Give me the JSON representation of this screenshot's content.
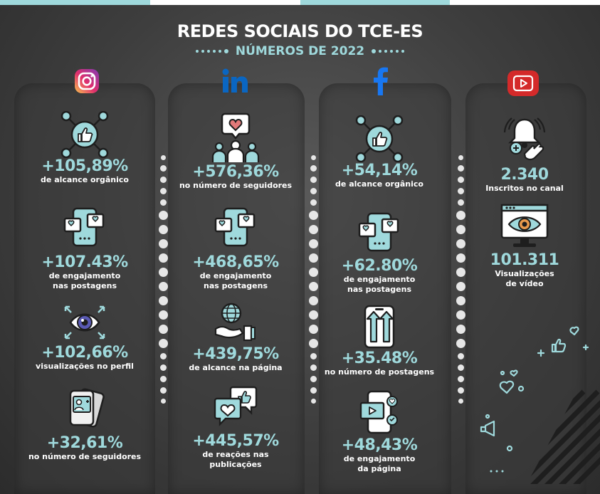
{
  "header": {
    "title": "REDES SOCIAIS DO TCE-ES",
    "subtitle": "NÚMEROS DE 2022"
  },
  "colors": {
    "accent": "#9fd9dc",
    "dark": "#2b2b2b",
    "instagram": "#c13584",
    "linkedin": "#0a66c2",
    "facebook": "#1877f2",
    "youtube": "#d42a2a"
  },
  "columns": [
    {
      "network": "instagram",
      "icon": "instagram-icon",
      "items": [
        {
          "icon": "thumbs-up-network-icon",
          "value": "+105,89%",
          "label": [
            "de alcance orgânico"
          ]
        },
        {
          "icon": "phone-hearts-icon",
          "value": "+107.43%",
          "label": [
            "de engajamento",
            "nas postagens"
          ]
        },
        {
          "icon": "eye-icon",
          "value": "+102,66%",
          "label": [
            "visualizações no perfil"
          ]
        },
        {
          "icon": "phone-profile-icon",
          "value": "+32,61%",
          "label": [
            "no número de seguidores"
          ]
        }
      ]
    },
    {
      "network": "linkedin",
      "icon": "linkedin-icon",
      "items": [
        {
          "icon": "people-heart-icon",
          "value": "+576,36%",
          "label": [
            "no número de seguidores"
          ]
        },
        {
          "icon": "phone-hearts-icon",
          "value": "+468,65%",
          "label": [
            "de engajamento",
            "nas postagens"
          ]
        },
        {
          "icon": "globe-hand-icon",
          "value": "+439,75%",
          "label": [
            "de alcance na página"
          ]
        },
        {
          "icon": "reaction-bubbles-icon",
          "value": "+445,57%",
          "label": [
            "de reações nas",
            "publicações"
          ]
        }
      ]
    },
    {
      "network": "facebook",
      "icon": "facebook-icon",
      "items": [
        {
          "icon": "thumbs-up-network-icon",
          "value": "+54,14%",
          "label": [
            "de alcance orgânico"
          ]
        },
        {
          "icon": "phone-hearts-icon",
          "value": "+62.80%",
          "label": [
            "de engajamento",
            "nas postagens"
          ]
        },
        {
          "icon": "phone-arrows-icon",
          "value": "+35.48%",
          "label": [
            "no número de postagens"
          ]
        },
        {
          "icon": "phone-video-icon",
          "value": "+48,43%",
          "label": [
            "de engajamento",
            "da página"
          ]
        }
      ]
    },
    {
      "network": "youtube",
      "icon": "youtube-icon",
      "items": [
        {
          "icon": "subscribe-bell-icon",
          "value": "2.340",
          "label": [
            "Inscritos no canal"
          ]
        },
        {
          "icon": "monitor-eye-icon",
          "value": "101.311",
          "label": [
            "Visualizações",
            "de vídeo"
          ]
        }
      ]
    }
  ]
}
